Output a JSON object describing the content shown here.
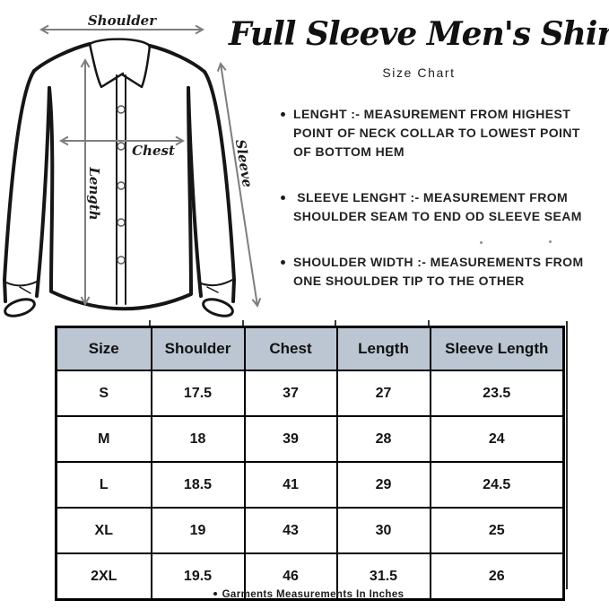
{
  "header": {
    "title": "Full Sleeve Men's Shirt",
    "subtitle": "Size Chart"
  },
  "diagram": {
    "labels": {
      "shoulder": "Shoulder",
      "chest": "Chest",
      "length": "Length",
      "sleeve": "Sleeve"
    },
    "outline_color": "#161616",
    "arrow_color": "#7e7e7e",
    "label_color": "#1c1c1c"
  },
  "notes": [
    {
      "text": "LENGHT :- MEASUREMENT FROM HIGHEST\nPOINT OF NECK COLLAR TO LOWEST POINT\nOF BOTTOM HEM"
    },
    {
      "text": " SLEEVE LENGHT :- MEASUREMENT FROM\nSHOULDER SEAM TO END OD SLEEVE SEAM"
    },
    {
      "text": "SHOULDER WIDTH :- MEASUREMENTS FROM\nONE SHOULDER TIP TO THE OTHER"
    }
  ],
  "table": {
    "header_bg": "#bcc6d3",
    "columns": [
      "Size",
      "Shoulder",
      "Chest",
      "Length",
      "Sleeve Length"
    ],
    "rows": [
      [
        "S",
        "17.5",
        "37",
        "27",
        "23.5"
      ],
      [
        "M",
        "18",
        "39",
        "28",
        "24"
      ],
      [
        "L",
        "18.5",
        "41",
        "29",
        "24.5"
      ],
      [
        "XL",
        "19",
        "43",
        "30",
        "25"
      ],
      [
        "2XL",
        "19.5",
        "46",
        "31.5",
        "26"
      ]
    ]
  },
  "footnote": {
    "text": "Garments Measurements In Inches"
  }
}
